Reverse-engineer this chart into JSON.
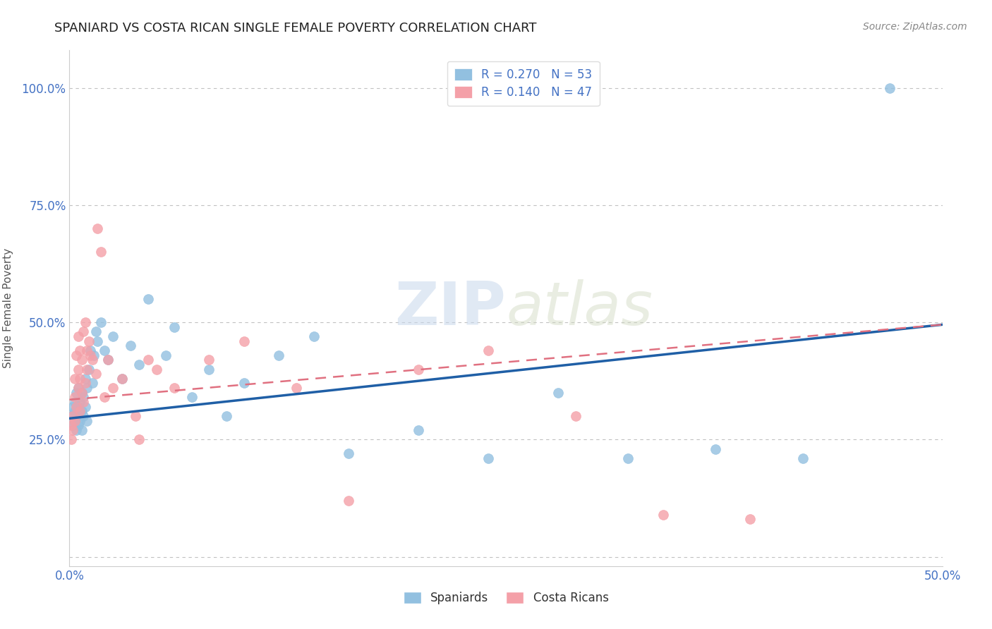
{
  "title": "SPANIARD VS COSTA RICAN SINGLE FEMALE POVERTY CORRELATION CHART",
  "source": "Source: ZipAtlas.com",
  "ylabel": "Single Female Poverty",
  "xlim": [
    0.0,
    0.5
  ],
  "ylim": [
    -0.02,
    1.08
  ],
  "xticks": [
    0.0,
    0.05,
    0.1,
    0.15,
    0.2,
    0.25,
    0.3,
    0.35,
    0.4,
    0.45,
    0.5
  ],
  "xtick_labels": [
    "0.0%",
    "",
    "",
    "",
    "",
    "",
    "",
    "",
    "",
    "",
    "50.0%"
  ],
  "ytick_labels": [
    "",
    "25.0%",
    "50.0%",
    "75.0%",
    "100.0%"
  ],
  "yticks": [
    0.0,
    0.25,
    0.5,
    0.75,
    1.0
  ],
  "spaniard_color": "#92c0e0",
  "costa_rican_color": "#f4a0a8",
  "spaniard_line_color": "#1f5fa6",
  "costa_rican_line_color": "#e07080",
  "R_spaniard": 0.27,
  "N_spaniard": 53,
  "R_costa_rican": 0.14,
  "N_costa_rican": 47,
  "watermark_zip": "ZIP",
  "watermark_atlas": "atlas",
  "spaniard_x": [
    0.001,
    0.002,
    0.002,
    0.003,
    0.003,
    0.003,
    0.004,
    0.004,
    0.004,
    0.005,
    0.005,
    0.005,
    0.006,
    0.006,
    0.007,
    0.007,
    0.007,
    0.008,
    0.008,
    0.009,
    0.009,
    0.01,
    0.01,
    0.011,
    0.012,
    0.013,
    0.014,
    0.015,
    0.016,
    0.018,
    0.02,
    0.022,
    0.025,
    0.03,
    0.035,
    0.04,
    0.045,
    0.055,
    0.06,
    0.07,
    0.08,
    0.09,
    0.1,
    0.12,
    0.14,
    0.16,
    0.2,
    0.24,
    0.28,
    0.32,
    0.37,
    0.42,
    0.47
  ],
  "spaniard_y": [
    0.3,
    0.28,
    0.32,
    0.31,
    0.29,
    0.33,
    0.3,
    0.27,
    0.35,
    0.32,
    0.28,
    0.36,
    0.29,
    0.33,
    0.31,
    0.35,
    0.27,
    0.34,
    0.3,
    0.38,
    0.32,
    0.36,
    0.29,
    0.4,
    0.44,
    0.37,
    0.43,
    0.48,
    0.46,
    0.5,
    0.44,
    0.42,
    0.47,
    0.38,
    0.45,
    0.41,
    0.55,
    0.43,
    0.49,
    0.34,
    0.4,
    0.3,
    0.37,
    0.43,
    0.47,
    0.22,
    0.27,
    0.21,
    0.35,
    0.21,
    0.23,
    0.21,
    1.0
  ],
  "costa_rican_x": [
    0.001,
    0.001,
    0.002,
    0.002,
    0.003,
    0.003,
    0.003,
    0.004,
    0.004,
    0.005,
    0.005,
    0.005,
    0.006,
    0.006,
    0.006,
    0.007,
    0.007,
    0.008,
    0.008,
    0.009,
    0.009,
    0.01,
    0.01,
    0.011,
    0.012,
    0.013,
    0.015,
    0.016,
    0.018,
    0.02,
    0.022,
    0.025,
    0.03,
    0.038,
    0.04,
    0.045,
    0.05,
    0.06,
    0.08,
    0.1,
    0.13,
    0.16,
    0.2,
    0.24,
    0.29,
    0.34,
    0.39
  ],
  "costa_rican_y": [
    0.28,
    0.25,
    0.3,
    0.27,
    0.34,
    0.38,
    0.29,
    0.43,
    0.32,
    0.47,
    0.36,
    0.4,
    0.44,
    0.31,
    0.38,
    0.42,
    0.35,
    0.48,
    0.33,
    0.5,
    0.37,
    0.44,
    0.4,
    0.46,
    0.43,
    0.42,
    0.39,
    0.7,
    0.65,
    0.34,
    0.42,
    0.36,
    0.38,
    0.3,
    0.25,
    0.42,
    0.4,
    0.36,
    0.42,
    0.46,
    0.36,
    0.12,
    0.4,
    0.44,
    0.3,
    0.09,
    0.08
  ]
}
